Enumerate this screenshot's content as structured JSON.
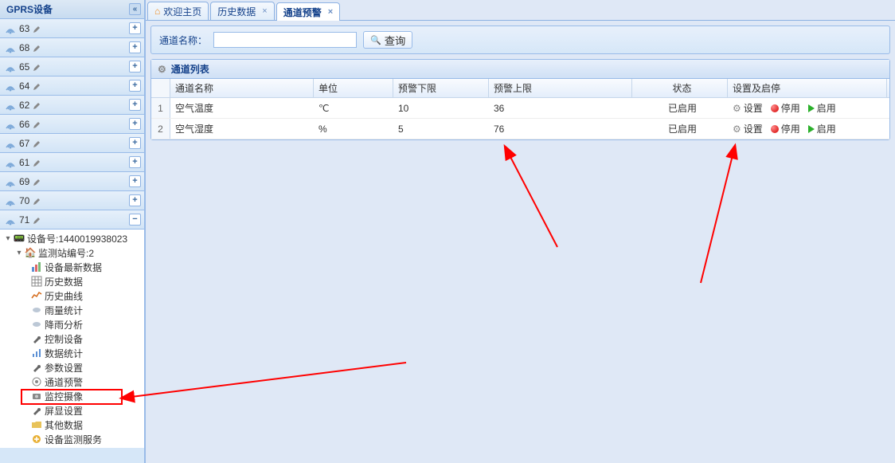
{
  "sidebar": {
    "title": "GPRS设备",
    "devices": [
      {
        "label": "63",
        "expanded": false
      },
      {
        "label": "68",
        "expanded": false
      },
      {
        "label": "65",
        "expanded": false
      },
      {
        "label": "64",
        "expanded": false
      },
      {
        "label": "62",
        "expanded": false
      },
      {
        "label": "66",
        "expanded": false
      },
      {
        "label": "67",
        "expanded": false
      },
      {
        "label": "61",
        "expanded": false
      },
      {
        "label": "69",
        "expanded": false
      },
      {
        "label": "70",
        "expanded": false
      },
      {
        "label": "71",
        "expanded": true
      }
    ],
    "tree": {
      "device_label": "设备号:1440019938023",
      "station_label": "监测站编号:2",
      "children": [
        {
          "label": "设备最新数据",
          "icon": "bar-chart",
          "color": "#e06666"
        },
        {
          "label": "历史数据",
          "icon": "grid",
          "color": "#888"
        },
        {
          "label": "历史曲线",
          "icon": "line-chart",
          "color": "#d46a1a"
        },
        {
          "label": "雨量统计",
          "icon": "cloud",
          "color": "#888"
        },
        {
          "label": "降雨分析",
          "icon": "cloud",
          "color": "#888"
        },
        {
          "label": "控制设备",
          "icon": "wrench",
          "color": "#666"
        },
        {
          "label": "数据统计",
          "icon": "stats",
          "color": "#5b8fd4"
        },
        {
          "label": "参数设置",
          "icon": "wrench",
          "color": "#666"
        },
        {
          "label": "通道预警",
          "icon": "target",
          "color": "#888",
          "highlighted": true
        },
        {
          "label": "监控摄像",
          "icon": "camera",
          "color": "#888"
        },
        {
          "label": "屏显设置",
          "icon": "wrench",
          "color": "#666"
        },
        {
          "label": "其他数据",
          "icon": "folder",
          "color": "#e8c35a"
        },
        {
          "label": "设备监测服务",
          "icon": "service",
          "color": "#e8b035"
        }
      ]
    }
  },
  "tabs": [
    {
      "label": "欢迎主页",
      "icon": "home",
      "closable": false,
      "active": false
    },
    {
      "label": "历史数据",
      "icon": null,
      "closable": true,
      "active": false
    },
    {
      "label": "通道预警",
      "icon": null,
      "closable": true,
      "active": true
    }
  ],
  "search": {
    "label": "通道名称：",
    "placeholder": "",
    "button": "查询"
  },
  "list": {
    "title": "通道列表",
    "columns": [
      "通道名称",
      "单位",
      "预警下限",
      "预警上限",
      "状态",
      "设置及启停"
    ],
    "rows": [
      {
        "num": "1",
        "name": "空气温度",
        "unit": "℃",
        "low": "10",
        "high": "36",
        "status": "已启用"
      },
      {
        "num": "2",
        "name": "空气湿度",
        "unit": "%",
        "low": "5",
        "high": "76",
        "status": "已启用"
      }
    ],
    "actions": {
      "setting": "设置",
      "stop": "停用",
      "start": "启用"
    }
  },
  "colors": {
    "border": "#99bbe8",
    "header_text": "#15428b",
    "highlight": "#ff0000"
  }
}
